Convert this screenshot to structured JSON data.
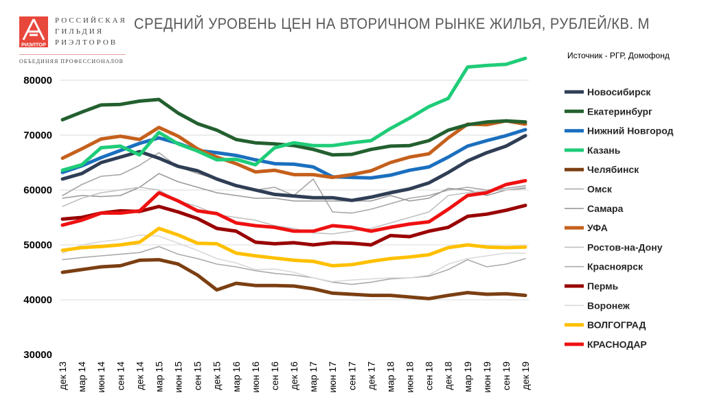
{
  "logo": {
    "line1": "РОССИЙСКАЯ",
    "line2": "ГИЛЬДИЯ",
    "line3": "РИЭЛТОРОВ",
    "badge": "РИЭЛТОР",
    "slogan": "ОБЪЕДИНЯЯ ПРОФЕССИОНАЛОВ"
  },
  "source": "Источник - РГР, Домофонд",
  "chart_data": {
    "type": "line",
    "title": "СРЕДНИЙ УРОВЕНЬ ЦЕН НА ВТОРИЧНОМ РЫНКЕ ЖИЛЬЯ, РУБЛЕЙ/КВ. М",
    "xlabel": "",
    "ylabel": "",
    "ylim": [
      30000,
      80000
    ],
    "yticks": [
      "80000",
      "70000",
      "60000",
      "50000",
      "40000",
      "30000"
    ],
    "grid": true,
    "legend": "right",
    "x": [
      "дек 13",
      "мар 14",
      "июн 14",
      "сен 14",
      "дек 14",
      "мар 15",
      "июн 15",
      "сен 15",
      "дек 15",
      "мар 16",
      "июн 16",
      "сен 16",
      "дек 16",
      "мар 17",
      "июн 17",
      "сен 17",
      "дек 17",
      "мар 18",
      "июн 18",
      "сен 18",
      "дек 18",
      "мар 19",
      "июн 19",
      "сен 19",
      "дек 19"
    ],
    "series": [
      {
        "name": "Новосибирск",
        "color": "#2f3e55",
        "thick": true,
        "values": [
          62000,
          63000,
          65000,
          66000,
          67000,
          65800,
          64300,
          63500,
          62000,
          60800,
          60000,
          59200,
          58900,
          58600,
          58600,
          58100,
          58700,
          59500,
          60200,
          61300,
          63200,
          65300,
          66800,
          68000,
          69900
        ]
      },
      {
        "name": "Екатеринбург",
        "color": "#23602f",
        "thick": true,
        "values": [
          72800,
          74200,
          75500,
          75600,
          76200,
          76500,
          74000,
          72100,
          70900,
          69200,
          68600,
          68400,
          68100,
          67400,
          66400,
          66500,
          67400,
          68000,
          68100,
          69000,
          70900,
          71900,
          72400,
          72600,
          72400
        ]
      },
      {
        "name": "Нижний Новгород",
        "color": "#1b6fbf",
        "thick": true,
        "values": [
          63200,
          64400,
          65900,
          67200,
          68500,
          69500,
          68500,
          67200,
          66800,
          66300,
          65500,
          64800,
          64700,
          64200,
          62400,
          62300,
          62200,
          62700,
          63600,
          64200,
          66000,
          68000,
          69000,
          69900,
          71000
        ]
      },
      {
        "name": "Казань",
        "color": "#1fcc78",
        "thick": true,
        "values": [
          63600,
          64600,
          67700,
          68000,
          66400,
          70500,
          68400,
          67100,
          65500,
          65600,
          64600,
          67700,
          68600,
          68100,
          68100,
          68600,
          69000,
          71200,
          73100,
          75200,
          76700,
          82400,
          82700,
          82900,
          84000
        ]
      },
      {
        "name": "Челябинск",
        "color": "#7b3f12",
        "thick": true,
        "values": [
          45000,
          45500,
          46000,
          46200,
          47200,
          47300,
          46500,
          44500,
          41800,
          43000,
          42600,
          42600,
          42500,
          42000,
          41200,
          41000,
          40800,
          40800,
          40500,
          40200,
          40800,
          41300,
          41000,
          41100,
          40800
        ]
      },
      {
        "name": "Омск",
        "color": "#a6a6a6",
        "thick": false,
        "values": [
          59000,
          61000,
          62500,
          62800,
          64500,
          66800,
          64200,
          63000,
          62000,
          61000,
          60000,
          60500,
          59000,
          62000,
          56000,
          55800,
          56500,
          57500,
          58500,
          59000,
          60000,
          60500,
          60000,
          60300,
          60800
        ]
      },
      {
        "name": "Самара",
        "color": "#999999",
        "thick": false,
        "values": [
          58500,
          59000,
          58800,
          59000,
          60500,
          63000,
          61500,
          60500,
          59500,
          59000,
          58500,
          58500,
          58000,
          58000,
          58000,
          58000,
          58000,
          59000,
          58000,
          58500,
          60300,
          60000,
          59000,
          60000,
          60300
        ]
      },
      {
        "name": "УФА",
        "color": "#c5601c",
        "thick": true,
        "values": [
          65800,
          67500,
          69300,
          69800,
          69200,
          71400,
          69800,
          67500,
          66000,
          64800,
          63300,
          63600,
          62800,
          62800,
          62300,
          62800,
          63500,
          65000,
          66000,
          66600,
          69500,
          72000,
          71900,
          72600,
          72000
        ]
      },
      {
        "name": "Ростов-на-Дону",
        "color": "#bfbfbf",
        "thick": false,
        "values": [
          57000,
          58500,
          59500,
          60000,
          60500,
          60000,
          58000,
          57000,
          55500,
          55000,
          54500,
          53500,
          53000,
          52200,
          52000,
          52500,
          53000,
          54000,
          55000,
          56000,
          59000,
          59500,
          59800,
          60000,
          60500
        ]
      },
      {
        "name": "Красноярск",
        "color": "#aaaaaa",
        "thick": false,
        "values": [
          47300,
          47700,
          48000,
          48300,
          48600,
          49700,
          48300,
          47500,
          46500,
          46000,
          45300,
          44800,
          44500,
          44000,
          43200,
          42800,
          43200,
          43800,
          44000,
          44300,
          45500,
          47300,
          46000,
          46500,
          47500
        ]
      },
      {
        "name": "Пермь",
        "color": "#990000",
        "thick": true,
        "values": [
          54700,
          55000,
          55800,
          56200,
          56100,
          57000,
          56000,
          54800,
          53000,
          52500,
          50500,
          50200,
          50400,
          50000,
          50400,
          50300,
          50000,
          51700,
          51500,
          52500,
          53200,
          55200,
          55600,
          56300,
          57200
        ]
      },
      {
        "name": "Воронеж",
        "color": "#d9d9d9",
        "thick": false,
        "values": [
          48500,
          50000,
          50600,
          51000,
          51800,
          51600,
          50300,
          49000,
          47500,
          46700,
          45500,
          45600,
          45000,
          44000,
          43300,
          43600,
          43800,
          44000,
          44000,
          44500,
          46500,
          47500,
          48000,
          48500,
          48500
        ]
      },
      {
        "name": "ВОЛГОГРАД",
        "color": "#ffc000",
        "thick": true,
        "values": [
          49000,
          49500,
          49700,
          50000,
          50500,
          53000,
          51800,
          50300,
          50200,
          48500,
          48000,
          47600,
          47200,
          47000,
          46200,
          46400,
          47000,
          47500,
          47800,
          48200,
          49500,
          50000,
          49600,
          49500,
          49600
        ]
      },
      {
        "name": "КРАСНОДАР",
        "color": "#ee1111",
        "thick": true,
        "values": [
          53600,
          54500,
          55800,
          55800,
          56200,
          59500,
          58000,
          56200,
          55700,
          54000,
          53500,
          53200,
          52500,
          52500,
          53500,
          53200,
          52500,
          53200,
          53800,
          54200,
          56500,
          59000,
          59500,
          61000,
          61700
        ]
      }
    ]
  }
}
